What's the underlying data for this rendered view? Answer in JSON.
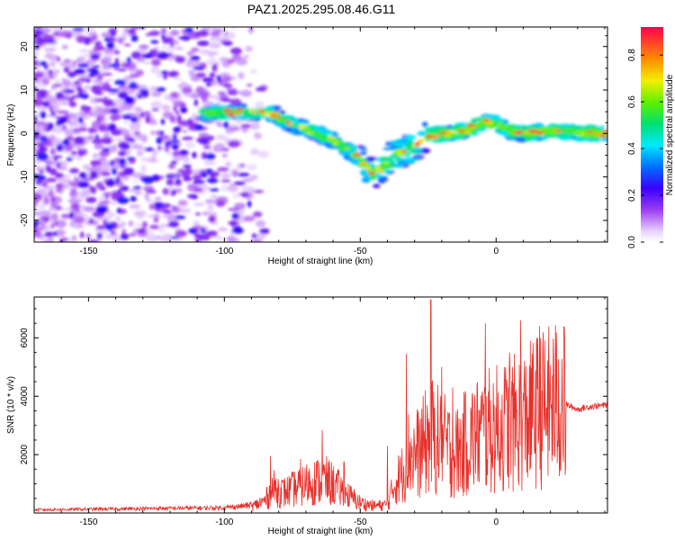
{
  "title": "PAZ1.2025.295.08.46.G11",
  "chart_data": [
    {
      "type": "heatmap",
      "xlabel": "Height of straight line (km)",
      "ylabel": "Frequency (Hz)",
      "xlim": [
        -170,
        41
      ],
      "ylim": [
        -25,
        24.5
      ],
      "x_ticks": [
        -150,
        -100,
        -50,
        0
      ],
      "y_ticks": [
        -20,
        -10,
        0,
        10,
        20
      ],
      "colorbar": {
        "label": "Normalized spectral amplitude",
        "range": [
          0,
          0.92
        ],
        "ticks": [
          0.0,
          0.2,
          0.4,
          0.6,
          0.8
        ]
      },
      "ridge": {
        "x": [
          -108,
          -100,
          -90,
          -82,
          -75,
          -68,
          -60,
          -55,
          -50,
          -46,
          -42,
          -38,
          -34,
          -30,
          -27,
          -24,
          -20,
          -15,
          -10,
          -5,
          -2,
          2,
          5,
          10,
          15,
          20,
          30,
          41
        ],
        "freq": [
          4.5,
          4.8,
          5.0,
          4.5,
          2.0,
          0.5,
          -1.5,
          -3.5,
          -6.0,
          -9.0,
          -8.5,
          -5.0,
          -4.0,
          -3.0,
          -1.5,
          -0.5,
          0,
          0,
          1.0,
          2.5,
          2.5,
          1.5,
          0.5,
          0,
          0.3,
          0.5,
          0.2,
          0
        ]
      }
    },
    {
      "type": "line",
      "xlabel": "Height of straight line (km)",
      "ylabel": "SNR (10 * v/v)",
      "xlim": [
        -170,
        41
      ],
      "ylim": [
        0,
        7400
      ],
      "x_ticks": [
        -150,
        -100,
        -50,
        0
      ],
      "y_ticks": [
        2000,
        4000,
        6000
      ],
      "series": [
        {
          "color": "#e8302a",
          "envelope_x": [
            -170,
            -100,
            -90,
            -85,
            -82,
            -78,
            -72,
            -68,
            -63,
            -60,
            -55,
            -50,
            -45,
            -40,
            -37,
            -34,
            -32,
            -30,
            -27,
            -24,
            -20,
            -15,
            -10,
            -5,
            0,
            5,
            10,
            15,
            20,
            25,
            26,
            30,
            35,
            41
          ],
          "envelope_y": [
            120,
            200,
            300,
            600,
            1200,
            1000,
            1300,
            1500,
            1600,
            1400,
            900,
            500,
            350,
            400,
            1500,
            2000,
            3000,
            2800,
            3200,
            3800,
            3400,
            2900,
            3600,
            3900,
            4100,
            4300,
            4500,
            5000,
            5200,
            5600,
            3700,
            3550,
            3650,
            3700
          ],
          "spikes": [
            [
              -83,
              1950
            ],
            [
              -72,
              1850
            ],
            [
              -64,
              2850
            ],
            [
              -56,
              1750
            ],
            [
              -40,
              2300
            ],
            [
              -33,
              5450
            ],
            [
              -28,
              3100
            ],
            [
              -24,
              7300
            ],
            [
              -20,
              5000
            ],
            [
              -16,
              4300
            ],
            [
              -4,
              6500
            ],
            [
              5,
              5500
            ],
            [
              9,
              6600
            ],
            [
              16,
              6400
            ],
            [
              25,
              6380
            ]
          ]
        }
      ]
    }
  ]
}
